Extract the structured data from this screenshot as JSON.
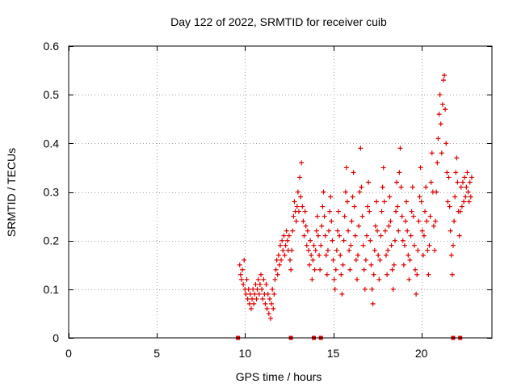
{
  "chart_data": {
    "type": "scatter",
    "title": "Day 122 of 2022, SRMTID for receiver cuib",
    "xlabel": "GPS time / hours",
    "ylabel": "SRMTID / TECUs",
    "xlim": [
      0,
      24
    ],
    "ylim": [
      0,
      0.6
    ],
    "xticks": [
      0,
      5,
      10,
      15,
      20
    ],
    "xtick_labels": [
      "0",
      "5",
      "10",
      "15",
      "20"
    ],
    "yticks": [
      0,
      0.1,
      0.2,
      0.3,
      0.4,
      0.5,
      0.6
    ],
    "ytick_labels": [
      "0",
      "0.1",
      "0.2",
      "0.3",
      "0.4",
      "0.5",
      "0.6"
    ],
    "grid": true,
    "marker": "+",
    "color": "#dd0000",
    "series": [
      {
        "name": "SRMTID",
        "points": [
          [
            9.7,
            0.15
          ],
          [
            9.75,
            0.13
          ],
          [
            9.8,
            0.12
          ],
          [
            9.85,
            0.14
          ],
          [
            9.9,
            0.11
          ],
          [
            9.95,
            0.16
          ],
          [
            10.0,
            0.1
          ],
          [
            10.05,
            0.09
          ],
          [
            10.1,
            0.12
          ],
          [
            10.15,
            0.08
          ],
          [
            10.2,
            0.1
          ],
          [
            10.25,
            0.07
          ],
          [
            10.3,
            0.09
          ],
          [
            10.35,
            0.06
          ],
          [
            10.4,
            0.08
          ],
          [
            10.45,
            0.1
          ],
          [
            10.5,
            0.07
          ],
          [
            10.55,
            0.09
          ],
          [
            10.6,
            0.11
          ],
          [
            10.65,
            0.08
          ],
          [
            10.7,
            0.1
          ],
          [
            10.75,
            0.12
          ],
          [
            10.8,
            0.09
          ],
          [
            10.85,
            0.11
          ],
          [
            10.9,
            0.13
          ],
          [
            10.95,
            0.1
          ],
          [
            11.0,
            0.08
          ],
          [
            11.05,
            0.12
          ],
          [
            11.1,
            0.09
          ],
          [
            11.15,
            0.07
          ],
          [
            11.2,
            0.11
          ],
          [
            11.25,
            0.06
          ],
          [
            11.3,
            0.09
          ],
          [
            11.35,
            0.05
          ],
          [
            11.4,
            0.08
          ],
          [
            11.45,
            0.04
          ],
          [
            11.5,
            0.07
          ],
          [
            11.55,
            0.1
          ],
          [
            11.6,
            0.06
          ],
          [
            11.65,
            0.09
          ],
          [
            11.7,
            0.12
          ],
          [
            11.75,
            0.14
          ],
          [
            11.8,
            0.16
          ],
          [
            11.85,
            0.13
          ],
          [
            11.9,
            0.17
          ],
          [
            11.95,
            0.15
          ],
          [
            12.0,
            0.19
          ],
          [
            12.05,
            0.16
          ],
          [
            12.1,
            0.2
          ],
          [
            12.15,
            0.18
          ],
          [
            12.2,
            0.21
          ],
          [
            12.25,
            0.17
          ],
          [
            12.3,
            0.19
          ],
          [
            12.35,
            0.22
          ],
          [
            12.4,
            0.2
          ],
          [
            12.45,
            0.18
          ],
          [
            12.5,
            0.21
          ],
          [
            12.55,
            0.16
          ],
          [
            12.6,
            0.14
          ],
          [
            12.65,
            0.18
          ],
          [
            12.7,
            0.22
          ],
          [
            12.75,
            0.25
          ],
          [
            12.8,
            0.28
          ],
          [
            12.85,
            0.26
          ],
          [
            12.9,
            0.24
          ],
          [
            12.95,
            0.27
          ],
          [
            13.0,
            0.3
          ],
          [
            13.05,
            0.26
          ],
          [
            13.1,
            0.33
          ],
          [
            13.15,
            0.29
          ],
          [
            13.2,
            0.36
          ],
          [
            13.25,
            0.27
          ],
          [
            13.3,
            0.24
          ],
          [
            13.35,
            0.21
          ],
          [
            13.4,
            0.26
          ],
          [
            13.45,
            0.23
          ],
          [
            13.5,
            0.19
          ],
          [
            13.55,
            0.22
          ],
          [
            13.6,
            0.18
          ],
          [
            13.65,
            0.15
          ],
          [
            13.7,
            0.2
          ],
          [
            13.75,
            0.17
          ],
          [
            13.8,
            0.12
          ],
          [
            13.85,
            0.16
          ],
          [
            13.9,
            0.19
          ],
          [
            13.95,
            0.14
          ],
          [
            14.0,
            0.18
          ],
          [
            14.05,
            0.22
          ],
          [
            14.1,
            0.25
          ],
          [
            14.15,
            0.21
          ],
          [
            14.2,
            0.17
          ],
          [
            14.25,
            0.14
          ],
          [
            14.3,
            0.19
          ],
          [
            14.35,
            0.23
          ],
          [
            14.4,
            0.27
          ],
          [
            14.45,
            0.3
          ],
          [
            14.5,
            0.25
          ],
          [
            14.55,
            0.21
          ],
          [
            14.6,
            0.17
          ],
          [
            14.65,
            0.13
          ],
          [
            14.7,
            0.18
          ],
          [
            14.75,
            0.22
          ],
          [
            14.8,
            0.26
          ],
          [
            14.85,
            0.29
          ],
          [
            14.9,
            0.24
          ],
          [
            14.95,
            0.2
          ],
          [
            15.0,
            0.16
          ],
          [
            15.05,
            0.12
          ],
          [
            15.1,
            0.1
          ],
          [
            15.15,
            0.14
          ],
          [
            15.2,
            0.18
          ],
          [
            15.25,
            0.22
          ],
          [
            15.3,
            0.26
          ],
          [
            15.35,
            0.21
          ],
          [
            15.4,
            0.17
          ],
          [
            15.45,
            0.13
          ],
          [
            15.5,
            0.09
          ],
          [
            15.55,
            0.15
          ],
          [
            15.6,
            0.2
          ],
          [
            15.65,
            0.25
          ],
          [
            15.7,
            0.3
          ],
          [
            15.75,
            0.35
          ],
          [
            15.8,
            0.28
          ],
          [
            15.85,
            0.22
          ],
          [
            15.9,
            0.18
          ],
          [
            15.95,
            0.14
          ],
          [
            16.0,
            0.19
          ],
          [
            16.05,
            0.24
          ],
          [
            16.1,
            0.29
          ],
          [
            16.15,
            0.34
          ],
          [
            16.2,
            0.27
          ],
          [
            16.25,
            0.21
          ],
          [
            16.3,
            0.16
          ],
          [
            16.35,
            0.12
          ],
          [
            16.4,
            0.17
          ],
          [
            16.45,
            0.23
          ],
          [
            16.5,
            0.3
          ],
          [
            16.55,
            0.39
          ],
          [
            16.6,
            0.31
          ],
          [
            16.65,
            0.25
          ],
          [
            16.7,
            0.19
          ],
          [
            16.75,
            0.14
          ],
          [
            16.8,
            0.1
          ],
          [
            16.85,
            0.16
          ],
          [
            16.9,
            0.21
          ],
          [
            16.95,
            0.27
          ],
          [
            17.0,
            0.32
          ],
          [
            17.05,
            0.26
          ],
          [
            17.1,
            0.2
          ],
          [
            17.15,
            0.15
          ],
          [
            17.2,
            0.1
          ],
          [
            17.25,
            0.07
          ],
          [
            17.3,
            0.13
          ],
          [
            17.35,
            0.18
          ],
          [
            17.4,
            0.23
          ],
          [
            17.45,
            0.28
          ],
          [
            17.5,
            0.22
          ],
          [
            17.55,
            0.17
          ],
          [
            17.6,
            0.12
          ],
          [
            17.65,
            0.16
          ],
          [
            17.7,
            0.21
          ],
          [
            17.75,
            0.26
          ],
          [
            17.8,
            0.31
          ],
          [
            17.85,
            0.35
          ],
          [
            17.9,
            0.28
          ],
          [
            17.95,
            0.22
          ],
          [
            18.0,
            0.17
          ],
          [
            18.05,
            0.13
          ],
          [
            18.1,
            0.18
          ],
          [
            18.15,
            0.23
          ],
          [
            18.2,
            0.29
          ],
          [
            18.25,
            0.24
          ],
          [
            18.3,
            0.19
          ],
          [
            18.35,
            0.14
          ],
          [
            18.4,
            0.1
          ],
          [
            18.45,
            0.15
          ],
          [
            18.5,
            0.2
          ],
          [
            18.55,
            0.26
          ],
          [
            18.6,
            0.32
          ],
          [
            18.65,
            0.27
          ],
          [
            18.7,
            0.22
          ],
          [
            18.75,
            0.34
          ],
          [
            18.8,
            0.39
          ],
          [
            18.85,
            0.31
          ],
          [
            18.9,
            0.25
          ],
          [
            18.95,
            0.2
          ],
          [
            19.0,
            0.15
          ],
          [
            19.05,
            0.19
          ],
          [
            19.1,
            0.24
          ],
          [
            19.15,
            0.28
          ],
          [
            19.2,
            0.22
          ],
          [
            19.25,
            0.17
          ],
          [
            19.3,
            0.12
          ],
          [
            19.35,
            0.16
          ],
          [
            19.4,
            0.21
          ],
          [
            19.45,
            0.26
          ],
          [
            19.5,
            0.31
          ],
          [
            19.55,
            0.25
          ],
          [
            19.6,
            0.19
          ],
          [
            19.65,
            0.14
          ],
          [
            19.7,
            0.09
          ],
          [
            19.75,
            0.13
          ],
          [
            19.8,
            0.18
          ],
          [
            19.85,
            0.24
          ],
          [
            19.9,
            0.29
          ],
          [
            19.95,
            0.35
          ],
          [
            20.0,
            0.28
          ],
          [
            20.05,
            0.22
          ],
          [
            20.1,
            0.17
          ],
          [
            20.15,
            0.21
          ],
          [
            20.2,
            0.26
          ],
          [
            20.25,
            0.31
          ],
          [
            20.3,
            0.24
          ],
          [
            20.35,
            0.18
          ],
          [
            20.4,
            0.13
          ],
          [
            20.45,
            0.19
          ],
          [
            20.5,
            0.25
          ],
          [
            20.55,
            0.32
          ],
          [
            20.6,
            0.38
          ],
          [
            20.65,
            0.3
          ],
          [
            20.7,
            0.23
          ],
          [
            20.75,
            0.18
          ],
          [
            20.8,
            0.24
          ],
          [
            20.85,
            0.3
          ],
          [
            20.9,
            0.36
          ],
          [
            20.95,
            0.41
          ],
          [
            21.0,
            0.46
          ],
          [
            21.05,
            0.5
          ],
          [
            21.1,
            0.44
          ],
          [
            21.15,
            0.38
          ],
          [
            21.2,
            0.48
          ],
          [
            21.25,
            0.53
          ],
          [
            21.3,
            0.54
          ],
          [
            21.35,
            0.47
          ],
          [
            21.4,
            0.4
          ],
          [
            21.45,
            0.34
          ],
          [
            21.5,
            0.28
          ],
          [
            21.55,
            0.33
          ],
          [
            21.6,
            0.27
          ],
          [
            21.65,
            0.22
          ],
          [
            21.7,
            0.17
          ],
          [
            21.75,
            0.13
          ],
          [
            21.8,
            0.19
          ],
          [
            21.85,
            0.24
          ],
          [
            21.9,
            0.29
          ],
          [
            21.95,
            0.34
          ],
          [
            22.0,
            0.37
          ],
          [
            22.05,
            0.32
          ],
          [
            22.1,
            0.26
          ],
          [
            22.15,
            0.21
          ],
          [
            22.2,
            0.26
          ],
          [
            22.25,
            0.31
          ],
          [
            22.3,
            0.27
          ],
          [
            22.35,
            0.32
          ],
          [
            22.4,
            0.28
          ],
          [
            22.45,
            0.33
          ],
          [
            22.5,
            0.29
          ],
          [
            22.55,
            0.31
          ],
          [
            22.6,
            0.34
          ],
          [
            22.65,
            0.3
          ],
          [
            22.7,
            0.28
          ],
          [
            22.75,
            0.32
          ],
          [
            22.8,
            0.29
          ],
          [
            22.85,
            0.33
          ]
        ]
      }
    ],
    "axis_markers": {
      "y": 0,
      "x": [
        9.6,
        12.6,
        13.9,
        14.3,
        21.8,
        22.2
      ]
    }
  }
}
